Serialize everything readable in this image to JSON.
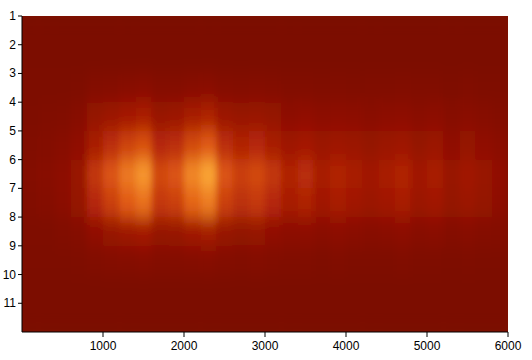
{
  "chart_data": {
    "type": "heatmap",
    "xlim": [
      0,
      6000
    ],
    "ylim": [
      1,
      12
    ],
    "xticks": [
      1000,
      2000,
      3000,
      4000,
      5000,
      6000
    ],
    "yticks": [
      1,
      2,
      3,
      4,
      5,
      6,
      7,
      8,
      9,
      10,
      11
    ],
    "zlim": [
      0,
      1
    ],
    "x_edges": [
      0,
      200,
      400,
      600,
      800,
      1000,
      1200,
      1400,
      1600,
      1800,
      2000,
      2200,
      2400,
      2600,
      2800,
      3000,
      3200,
      3400,
      3600,
      3800,
      4000,
      4200,
      4400,
      4600,
      4800,
      5000,
      5200,
      5400,
      5600,
      5800,
      6000
    ],
    "y_edges": [
      1,
      2,
      3,
      4,
      5,
      6,
      7,
      8,
      9,
      10,
      11,
      12
    ],
    "cells": [
      [
        0,
        0,
        0,
        0,
        0,
        0,
        0,
        0,
        0,
        0,
        0,
        0,
        0,
        0,
        0,
        0,
        0,
        0,
        0,
        0,
        0,
        0,
        0,
        0,
        0,
        0,
        0,
        0,
        0,
        0
      ],
      [
        0,
        0,
        0,
        0,
        0,
        0,
        0,
        0,
        0,
        0,
        0,
        0,
        0,
        0,
        0,
        0,
        0,
        0,
        0,
        0,
        0,
        0,
        0,
        0,
        0,
        0,
        0,
        0,
        0,
        0
      ],
      [
        0.01,
        0.01,
        0.01,
        0.02,
        0.05,
        0.06,
        0.08,
        0.09,
        0.06,
        0.06,
        0.08,
        0.09,
        0.06,
        0.05,
        0.06,
        0.05,
        0.04,
        0.04,
        0.03,
        0.04,
        0.03,
        0.03,
        0.03,
        0.04,
        0.03,
        0.03,
        0.02,
        0.03,
        0.02,
        0.02
      ],
      [
        0.02,
        0.03,
        0.04,
        0.07,
        0.16,
        0.21,
        0.26,
        0.3,
        0.19,
        0.21,
        0.28,
        0.32,
        0.21,
        0.18,
        0.19,
        0.16,
        0.12,
        0.14,
        0.11,
        0.12,
        0.11,
        0.09,
        0.11,
        0.12,
        0.09,
        0.11,
        0.07,
        0.09,
        0.07,
        0.05
      ],
      [
        0.03,
        0.05,
        0.08,
        0.13,
        0.29,
        0.39,
        0.49,
        0.55,
        0.36,
        0.39,
        0.52,
        0.59,
        0.39,
        0.33,
        0.36,
        0.29,
        0.23,
        0.26,
        0.2,
        0.23,
        0.2,
        0.16,
        0.2,
        0.23,
        0.16,
        0.2,
        0.13,
        0.16,
        0.13,
        0.1
      ],
      [
        0.05,
        0.08,
        0.11,
        0.19,
        0.43,
        0.57,
        0.71,
        0.81,
        0.52,
        0.57,
        0.76,
        0.86,
        0.57,
        0.48,
        0.52,
        0.43,
        0.33,
        0.38,
        0.29,
        0.33,
        0.29,
        0.24,
        0.29,
        0.33,
        0.24,
        0.29,
        0.19,
        0.24,
        0.19,
        0.14
      ],
      [
        0.04,
        0.06,
        0.1,
        0.16,
        0.36,
        0.48,
        0.6,
        0.68,
        0.44,
        0.48,
        0.64,
        0.72,
        0.48,
        0.4,
        0.44,
        0.36,
        0.28,
        0.32,
        0.24,
        0.28,
        0.24,
        0.2,
        0.24,
        0.28,
        0.2,
        0.24,
        0.16,
        0.2,
        0.16,
        0.12
      ],
      [
        0.02,
        0.02,
        0.04,
        0.06,
        0.14,
        0.18,
        0.23,
        0.26,
        0.17,
        0.18,
        0.24,
        0.27,
        0.18,
        0.15,
        0.17,
        0.14,
        0.11,
        0.12,
        0.09,
        0.11,
        0.09,
        0.08,
        0.09,
        0.11,
        0.08,
        0.09,
        0.06,
        0.08,
        0.06,
        0.05
      ],
      [
        0.01,
        0.01,
        0.01,
        0.02,
        0.04,
        0.05,
        0.06,
        0.07,
        0.05,
        0.05,
        0.06,
        0.07,
        0.05,
        0.04,
        0.05,
        0.04,
        0.03,
        0.03,
        0.02,
        0.03,
        0.02,
        0.02,
        0.02,
        0.03,
        0.02,
        0.02,
        0.01,
        0.02,
        0.01,
        0.01
      ],
      [
        0,
        0,
        0,
        0,
        0,
        0,
        0,
        0,
        0,
        0,
        0,
        0,
        0,
        0,
        0,
        0,
        0,
        0,
        0,
        0,
        0,
        0,
        0,
        0,
        0,
        0,
        0,
        0,
        0,
        0
      ],
      [
        0,
        0,
        0,
        0,
        0,
        0,
        0,
        0,
        0,
        0,
        0,
        0,
        0,
        0,
        0,
        0,
        0,
        0,
        0,
        0,
        0,
        0,
        0,
        0,
        0,
        0,
        0,
        0,
        0,
        0
      ]
    ]
  }
}
